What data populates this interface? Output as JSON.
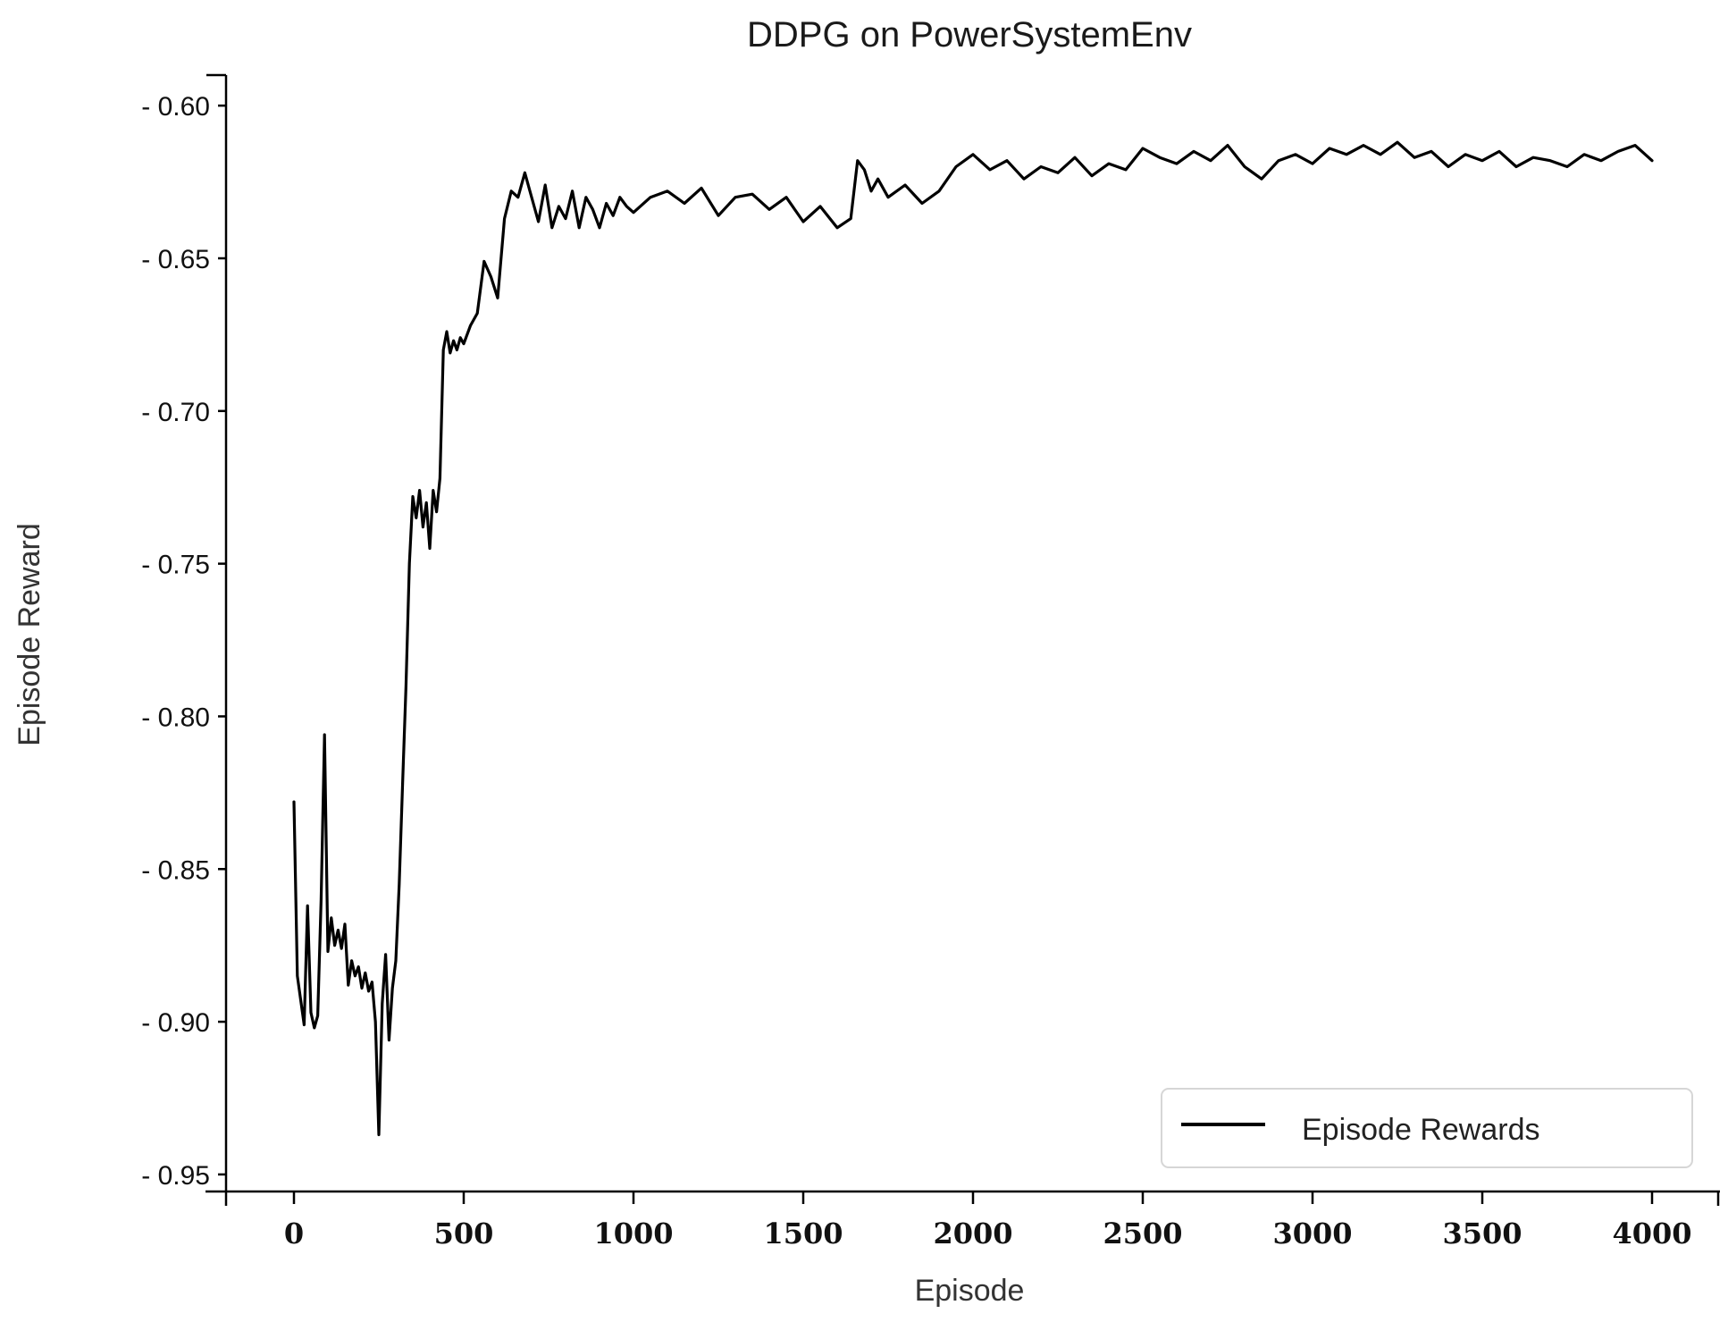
{
  "chart_data": {
    "type": "line",
    "title": "DDPG on PowerSystemEnv",
    "xlabel": "Episode",
    "ylabel": "Episode Reward",
    "xlim": [
      -200,
      4200
    ],
    "ylim": [
      -0.955,
      -0.59
    ],
    "xticks": [
      0,
      500,
      1000,
      1500,
      2000,
      2500,
      3000,
      3500,
      4000
    ],
    "xtick_labels": [
      "0",
      "500",
      "1000",
      "1500",
      "2000",
      "2500",
      "3000",
      "3500",
      "4000"
    ],
    "yticks": [
      -0.6,
      -0.65,
      -0.7,
      -0.75,
      -0.8,
      -0.85,
      -0.9,
      -0.95
    ],
    "ytick_labels": [
      "- 0.60",
      "- 0.65",
      "- 0.70",
      "- 0.75",
      "- 0.80",
      "- 0.85",
      "- 0.90",
      "- 0.95"
    ],
    "grid": false,
    "legend": {
      "position": "bottom-right",
      "entries": [
        "Episode Rewards"
      ]
    },
    "series": [
      {
        "name": "Episode Rewards",
        "color": "#000000",
        "x": [
          0,
          10,
          20,
          30,
          40,
          50,
          60,
          70,
          80,
          90,
          100,
          110,
          120,
          130,
          140,
          150,
          160,
          170,
          180,
          190,
          200,
          210,
          220,
          230,
          240,
          250,
          260,
          270,
          280,
          290,
          300,
          310,
          320,
          330,
          340,
          350,
          360,
          370,
          380,
          390,
          400,
          410,
          420,
          430,
          440,
          450,
          460,
          470,
          480,
          490,
          500,
          520,
          540,
          560,
          580,
          600,
          620,
          640,
          660,
          680,
          700,
          720,
          740,
          760,
          780,
          800,
          820,
          840,
          860,
          880,
          900,
          920,
          940,
          960,
          980,
          1000,
          1050,
          1100,
          1150,
          1200,
          1250,
          1300,
          1350,
          1400,
          1450,
          1500,
          1550,
          1600,
          1640,
          1660,
          1680,
          1700,
          1720,
          1750,
          1800,
          1850,
          1900,
          1950,
          2000,
          2050,
          2100,
          2150,
          2200,
          2250,
          2300,
          2350,
          2400,
          2450,
          2500,
          2550,
          2600,
          2650,
          2700,
          2750,
          2800,
          2850,
          2900,
          2950,
          3000,
          3050,
          3100,
          3150,
          3200,
          3250,
          3300,
          3350,
          3400,
          3450,
          3500,
          3550,
          3600,
          3650,
          3700,
          3750,
          3800,
          3850,
          3900,
          3950,
          4000
        ],
        "y": [
          -0.828,
          -0.885,
          -0.893,
          -0.901,
          -0.862,
          -0.897,
          -0.902,
          -0.898,
          -0.86,
          -0.806,
          -0.877,
          -0.866,
          -0.875,
          -0.87,
          -0.876,
          -0.868,
          -0.888,
          -0.88,
          -0.885,
          -0.882,
          -0.889,
          -0.884,
          -0.89,
          -0.887,
          -0.9,
          -0.937,
          -0.894,
          -0.878,
          -0.906,
          -0.889,
          -0.88,
          -0.855,
          -0.822,
          -0.79,
          -0.75,
          -0.728,
          -0.735,
          -0.726,
          -0.738,
          -0.73,
          -0.745,
          -0.726,
          -0.733,
          -0.722,
          -0.68,
          -0.674,
          -0.681,
          -0.677,
          -0.68,
          -0.676,
          -0.678,
          -0.672,
          -0.668,
          -0.651,
          -0.656,
          -0.663,
          -0.637,
          -0.628,
          -0.63,
          -0.622,
          -0.63,
          -0.638,
          -0.626,
          -0.64,
          -0.633,
          -0.637,
          -0.628,
          -0.64,
          -0.63,
          -0.634,
          -0.64,
          -0.632,
          -0.636,
          -0.63,
          -0.633,
          -0.635,
          -0.63,
          -0.628,
          -0.632,
          -0.627,
          -0.636,
          -0.63,
          -0.629,
          -0.634,
          -0.63,
          -0.638,
          -0.633,
          -0.64,
          -0.637,
          -0.618,
          -0.621,
          -0.628,
          -0.624,
          -0.63,
          -0.626,
          -0.632,
          -0.628,
          -0.62,
          -0.616,
          -0.621,
          -0.618,
          -0.624,
          -0.62,
          -0.622,
          -0.617,
          -0.623,
          -0.619,
          -0.621,
          -0.614,
          -0.617,
          -0.619,
          -0.615,
          -0.618,
          -0.613,
          -0.62,
          -0.624,
          -0.618,
          -0.616,
          -0.619,
          -0.614,
          -0.616,
          -0.613,
          -0.616,
          -0.612,
          -0.617,
          -0.615,
          -0.62,
          -0.616,
          -0.618,
          -0.615,
          -0.62,
          -0.617,
          -0.618,
          -0.62,
          -0.616,
          -0.618,
          -0.615,
          -0.613,
          -0.618
        ]
      }
    ]
  }
}
